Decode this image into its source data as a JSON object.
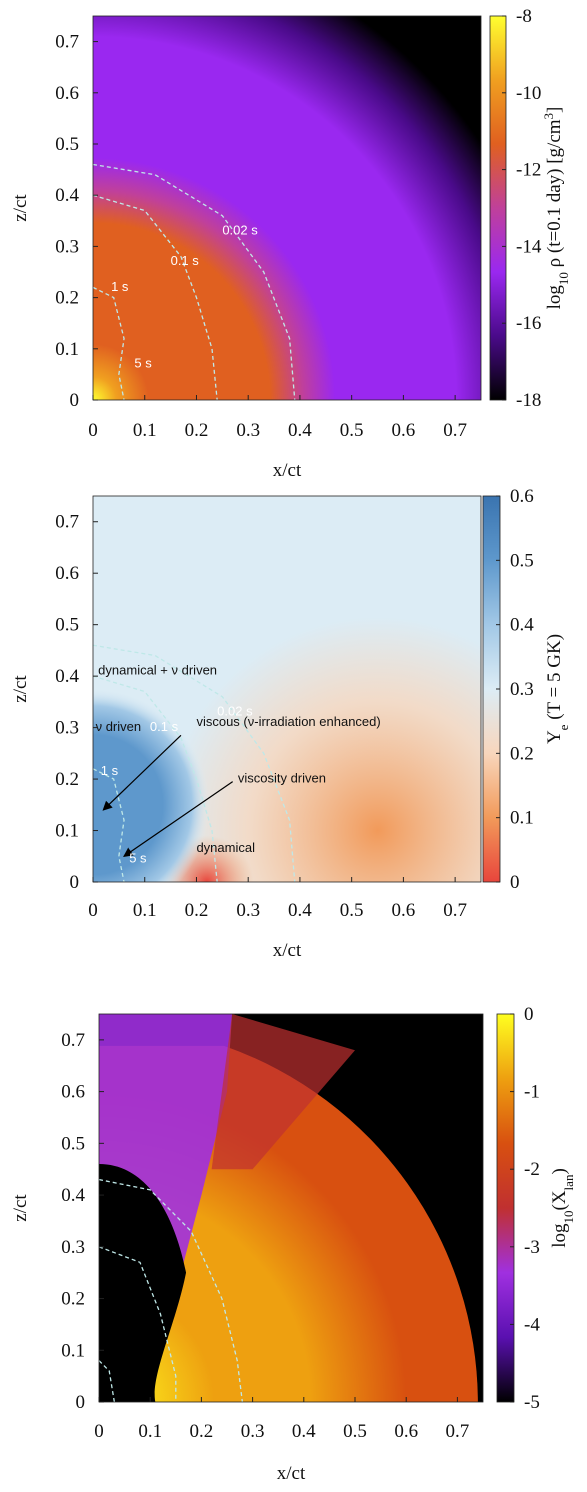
{
  "chart_data": [
    {
      "type": "heatmap",
      "xlabel": "x/ct",
      "ylabel": "z/ct",
      "xlim": [
        0,
        0.75
      ],
      "ylim": [
        0,
        0.75
      ],
      "xticks": [
        0,
        0.1,
        0.2,
        0.3,
        0.4,
        0.5,
        0.6,
        0.7
      ],
      "yticks": [
        0,
        0.1,
        0.2,
        0.3,
        0.4,
        0.5,
        0.6,
        0.7
      ],
      "colorbar": {
        "lim": [
          -18,
          -8
        ],
        "ticks": [
          -18,
          -16,
          -14,
          -12,
          -10,
          -8
        ],
        "label": [
          "log",
          "10",
          " ρ (t=0.1 day) [g/cm",
          "3",
          "]"
        ],
        "colormap": [
          "#000000",
          "#4a0a8a",
          "#9a28f0",
          "#c0409a",
          "#e06020",
          "#f0a020",
          "#ffff30"
        ]
      },
      "annotations": [
        "0.02 s",
        "0.1 s",
        "1 s",
        "5 s"
      ]
    },
    {
      "type": "heatmap",
      "xlabel": "x/ct",
      "ylabel": "z/ct",
      "xlim": [
        0,
        0.75
      ],
      "ylim": [
        0,
        0.75
      ],
      "xticks": [
        0,
        0.1,
        0.2,
        0.3,
        0.4,
        0.5,
        0.6,
        0.7
      ],
      "yticks": [
        0,
        0.1,
        0.2,
        0.3,
        0.4,
        0.5,
        0.6,
        0.7
      ],
      "colorbar": {
        "lim": [
          0,
          0.6
        ],
        "ticks": [
          0,
          0.1,
          0.2,
          0.3,
          0.4,
          0.5,
          0.6
        ],
        "label": [
          "Y",
          "e",
          " (T = 5 GK)"
        ],
        "colormap": [
          "#e8453c",
          "#f29a5a",
          "#f8d6bc",
          "#dcecf5",
          "#a2c8e6",
          "#5e98cc",
          "#3a74b0"
        ]
      },
      "annotations": [
        "dynamical + ν driven",
        "ν driven",
        "0.02 s",
        "0.1 s",
        "viscous (ν-irradiation enhanced)",
        "1 s",
        "viscosity driven",
        "5 s",
        "dynamical"
      ]
    },
    {
      "type": "heatmap",
      "xlabel": "x/ct",
      "ylabel": "z/ct",
      "xlim": [
        0,
        0.75
      ],
      "ylim": [
        0,
        0.75
      ],
      "xticks": [
        0,
        0.1,
        0.2,
        0.3,
        0.4,
        0.5,
        0.6,
        0.7
      ],
      "yticks": [
        0,
        0.1,
        0.2,
        0.3,
        0.4,
        0.5,
        0.6,
        0.7
      ],
      "colorbar": {
        "lim": [
          -5,
          0
        ],
        "ticks": [
          -5,
          -4,
          -3,
          -2,
          -1,
          0
        ],
        "label": [
          "log",
          "10",
          "(X",
          "lan",
          ")"
        ],
        "colormap": [
          "#000000",
          "#5a10b0",
          "#a030e0",
          "#c03030",
          "#d85010",
          "#eea010",
          "#ffff20"
        ]
      }
    }
  ]
}
